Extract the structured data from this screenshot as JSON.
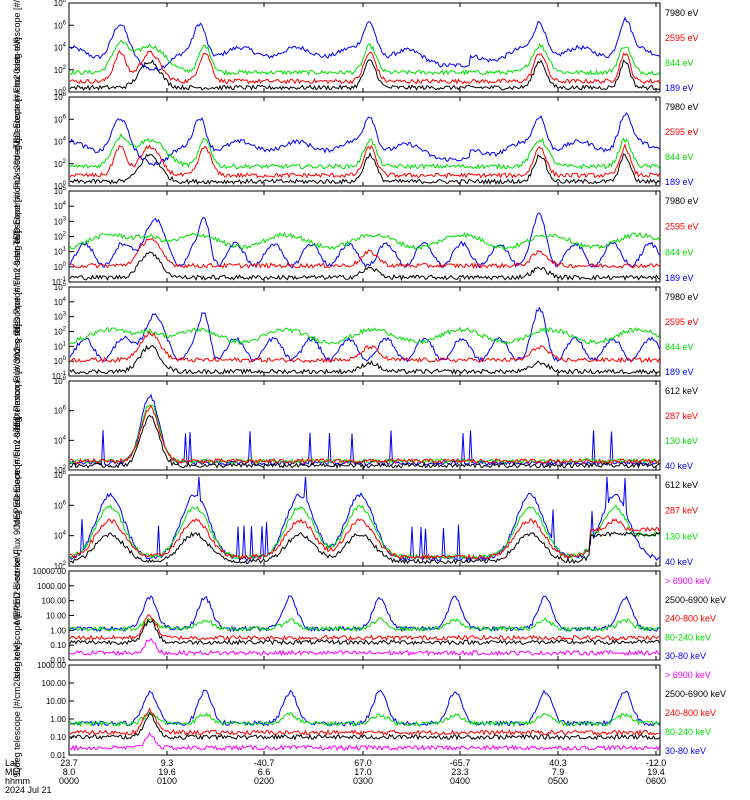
{
  "x_axis": {
    "rows": [
      {
        "label": "Lat",
        "values": [
          "23.7",
          "9.3",
          "-40.7",
          "67.0",
          "-65.7",
          "40.3",
          "-12.0"
        ]
      },
      {
        "label": "MLT",
        "values": [
          "8.0",
          "19.6",
          "6.6",
          "17.0",
          "23.3",
          "7.9",
          "19.4"
        ]
      },
      {
        "label": "hhmm",
        "values": [
          "0000",
          "0100",
          "0200",
          "0300",
          "0400",
          "0500",
          "0600"
        ]
      }
    ],
    "date": "2024 Jul 21"
  },
  "colors": {
    "black": "#000000",
    "red": "#ff0000",
    "green": "#00e000",
    "blue": "#0000ff",
    "magenta": "#ff00ff"
  },
  "chart_data": [
    {
      "type": "line",
      "ylabel": "TED Electron Flux 0deg telescope [#/cm2-s-str-eV]",
      "ytick_labels": [
        "10^0",
        "10^2",
        "10^4",
        "10^6",
        "10^8"
      ],
      "series": [
        {
          "name": "7980 eV",
          "color": "black"
        },
        {
          "name": "2595 eV",
          "color": "red"
        },
        {
          "name": "844 eV",
          "color": "green"
        },
        {
          "name": "189 eV",
          "color": "blue"
        }
      ]
    },
    {
      "type": "line",
      "ylabel": "TED Electron Flux 30deg telescope [#/cm2-s-str-eV]",
      "ytick_labels": [
        "10^0",
        "10^2",
        "10^4",
        "10^6",
        "10^8"
      ],
      "series": [
        {
          "name": "7980 eV",
          "color": "black"
        },
        {
          "name": "2595 eV",
          "color": "red"
        },
        {
          "name": "844 eV",
          "color": "green"
        },
        {
          "name": "189 eV",
          "color": "blue"
        }
      ]
    },
    {
      "type": "line",
      "ylabel": "TED Proton Flux 0deg telescope [#/cm2-s-str-eV]",
      "ytick_labels": [
        "10^-1",
        "10^0",
        "10^1",
        "10^2",
        "10^3",
        "10^4",
        "10^5"
      ],
      "series": [
        {
          "name": "7980 eV",
          "color": "black"
        },
        {
          "name": "2595 eV",
          "color": "red"
        },
        {
          "name": "844 eV",
          "color": "green"
        },
        {
          "name": "189 eV",
          "color": "blue"
        }
      ]
    },
    {
      "type": "line",
      "ylabel": "TED Proton Flux 30deg telescope [#/cm2-s-str-eV]",
      "ytick_labels": [
        "10^-1",
        "10^0",
        "10^1",
        "10^2",
        "10^3",
        "10^4",
        "10^5"
      ],
      "series": [
        {
          "name": "7980 eV",
          "color": "black"
        },
        {
          "name": "2595 eV",
          "color": "red"
        },
        {
          "name": "844 eV",
          "color": "green"
        },
        {
          "name": "189 eV",
          "color": "blue"
        }
      ]
    },
    {
      "type": "line",
      "ylabel": "MEPED Electron Flux 0deg telescope [#/cm2-s-str]",
      "ytick_labels": [
        "10^2",
        "10^4",
        "10^6",
        "10^8"
      ],
      "series": [
        {
          "name": "612 keV",
          "color": "black"
        },
        {
          "name": "287 keV",
          "color": "red"
        },
        {
          "name": "130 keV",
          "color": "green"
        },
        {
          "name": "40 keV",
          "color": "blue"
        }
      ]
    },
    {
      "type": "line",
      "ylabel": "MEPED Electron Flux 90deg telescope [#/cm2-s-str]",
      "ytick_labels": [
        "10^2",
        "10^4",
        "10^6",
        "10^8"
      ],
      "series": [
        {
          "name": "612 keV",
          "color": "black"
        },
        {
          "name": "287 keV",
          "color": "red"
        },
        {
          "name": "130 keV",
          "color": "green"
        },
        {
          "name": "40 keV",
          "color": "blue"
        }
      ]
    },
    {
      "type": "line",
      "ylabel": "0deg telescope [#/cm2-s-str-keV]",
      "ytick_labels": [
        "0.01",
        "0.10",
        "1.00",
        "10.00",
        "100.00",
        "1000.00",
        "10000.00"
      ],
      "series": [
        {
          "name": "> 6900 keV",
          "color": "magenta"
        },
        {
          "name": "2500-6900 keV",
          "color": "black"
        },
        {
          "name": "240-800 keV",
          "color": "red"
        },
        {
          "name": "80-240 keV",
          "color": "green"
        },
        {
          "name": "30-80 keV",
          "color": "blue"
        }
      ]
    },
    {
      "type": "line",
      "ylabel": "90deg telescope [#/cm2-s-sr-keV]",
      "ytick_labels": [
        "0.01",
        "0.10",
        "1.00",
        "10.00",
        "100.00",
        "1000.00"
      ],
      "series": [
        {
          "name": "> 6900 keV",
          "color": "magenta"
        },
        {
          "name": "2500-6900 keV",
          "color": "black"
        },
        {
          "name": "240-800 keV",
          "color": "red"
        },
        {
          "name": "80-240 keV",
          "color": "green"
        },
        {
          "name": "30-80 keV",
          "color": "blue"
        }
      ]
    }
  ]
}
